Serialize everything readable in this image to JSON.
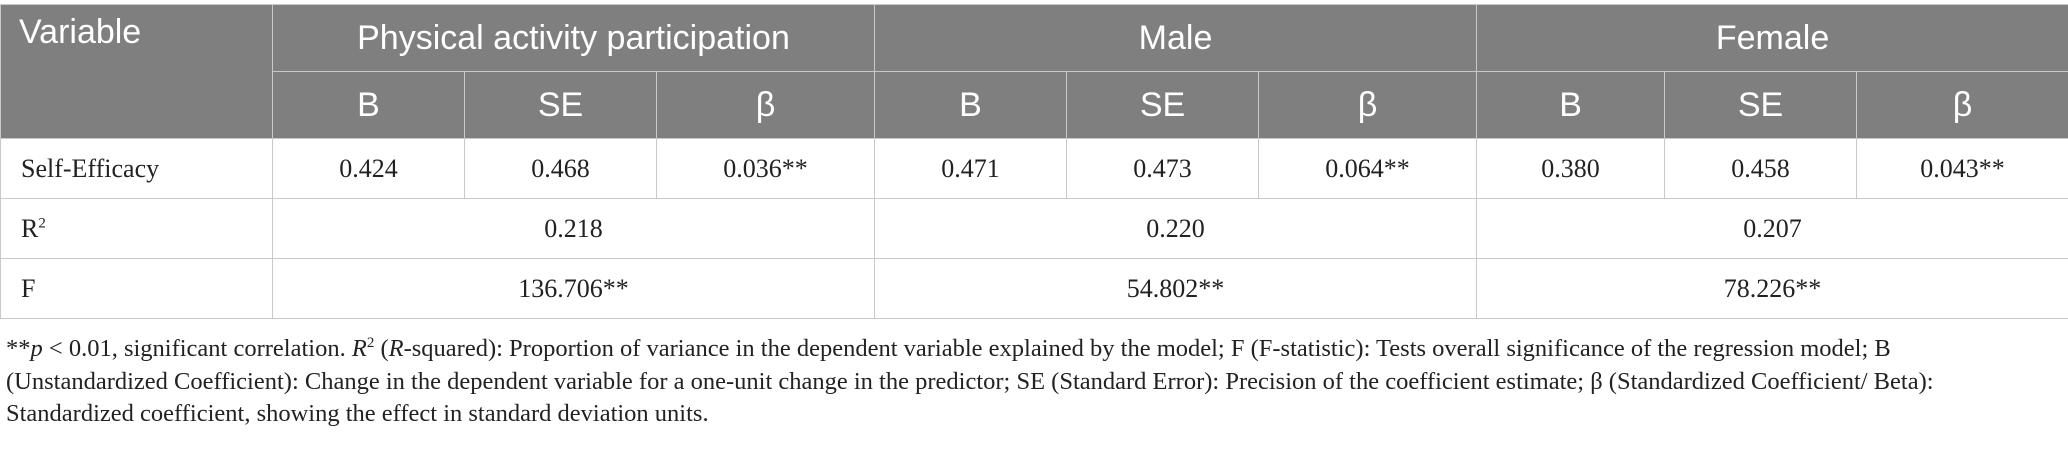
{
  "table": {
    "header": {
      "variable": "Variable",
      "groups": [
        "Physical activity participation",
        "Male",
        "Female"
      ],
      "subcolumns": [
        "B",
        "SE",
        "β"
      ]
    },
    "rows": [
      {
        "label": "Self-Efficacy",
        "cells": [
          "0.424",
          "0.468",
          "0.036**",
          "0.471",
          "0.473",
          "0.064**",
          "0.380",
          "0.458",
          "0.043**"
        ]
      },
      {
        "label": "R",
        "label_sup": "2",
        "cells": [
          "0.218",
          "0.220",
          "0.207"
        ]
      },
      {
        "label": "F",
        "cells": [
          "136.706**",
          "54.802**",
          "78.226**"
        ]
      }
    ]
  },
  "note": {
    "stars": "**",
    "p": "p",
    "p_rest": " < 0.01, significant correlation. ",
    "r2_r": "R",
    "r2_sup": "2",
    "r2_open": " (",
    "r2_italic": "R",
    "r2_rest": "-squared): Proportion of variance in the dependent variable explained by the model; F (F-statistic): Tests overall significance of the regression model; B (Unstandardized Coefficient): Change in the dependent variable for a one-unit change in the predictor; SE (Standard Error): Precision of the coefficient estimate; β (Standardized Coefficient/ Beta): Standardized coefficient, showing the effect in standard deviation units."
  },
  "colors": {
    "header_bg": "#7f7f7f",
    "header_text": "#ffffff",
    "border": "#c9c9c9",
    "body_text": "#222222"
  }
}
